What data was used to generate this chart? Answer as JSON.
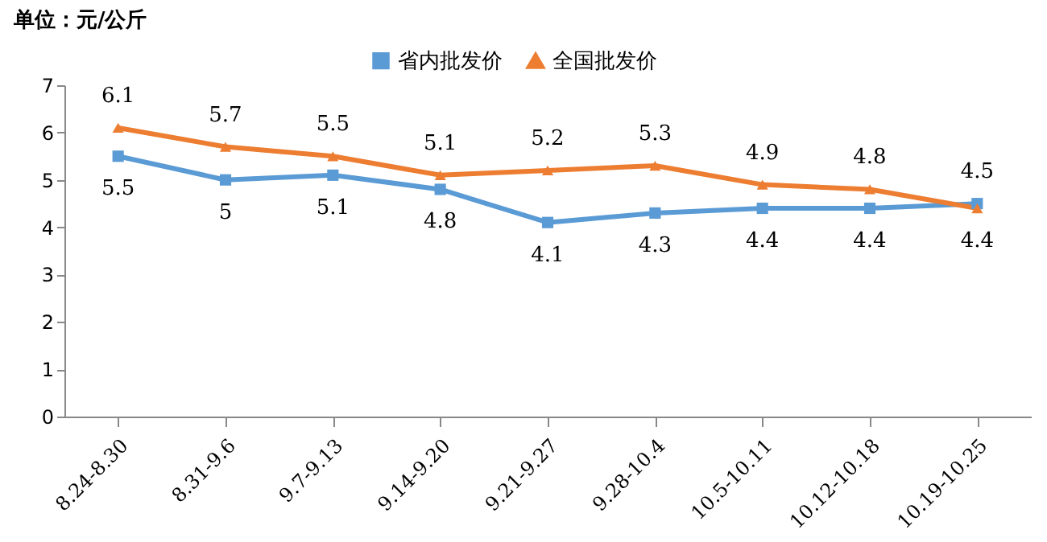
{
  "chart_data": {
    "type": "line",
    "ylabel": "单位：元/公斤",
    "categories": [
      "8.24-8.30",
      "8.31-9.6",
      "9.7-9.13",
      "9.14-9.20",
      "9.21-9.27",
      "9.28-10.4",
      "10.5-10.11",
      "10.12-10.18",
      "10.19-10.25"
    ],
    "series": [
      {
        "name": "省内批发价",
        "color": "#5b9bd5",
        "marker": "square",
        "values": [
          5.5,
          5,
          5.1,
          4.8,
          4.1,
          4.3,
          4.4,
          4.4,
          4.5
        ]
      },
      {
        "name": "全国批发价",
        "color": "#ed7d31",
        "marker": "triangle",
        "values": [
          6.1,
          5.7,
          5.5,
          5.1,
          5.2,
          5.3,
          4.9,
          4.8,
          4.4
        ]
      }
    ],
    "ylim": [
      0,
      7
    ],
    "yticks": [
      0,
      1,
      2,
      3,
      4,
      5,
      6,
      7
    ],
    "grid": false,
    "legend": "top",
    "data_labels": true
  }
}
